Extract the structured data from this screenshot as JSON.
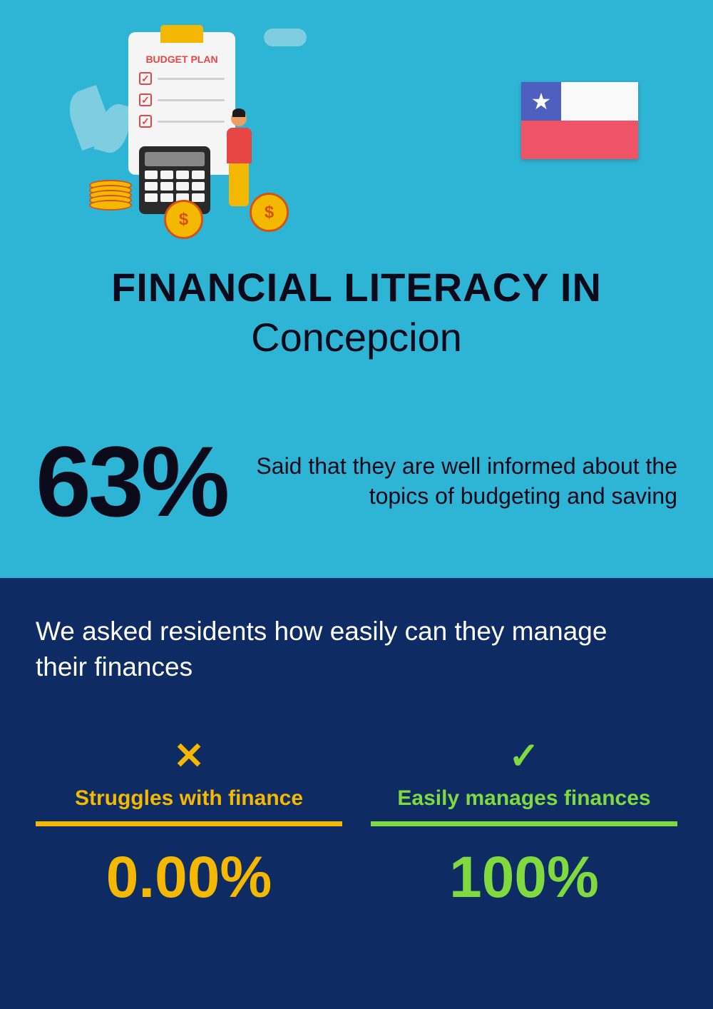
{
  "illustration": {
    "budget_plan_label": "BUDGET PLAN"
  },
  "flag": {
    "blue_color": "#4e5fbf",
    "white_color": "#f9f9f9",
    "red_color": "#f05365",
    "star": "★"
  },
  "title": {
    "main": "FINANCIAL LITERACY IN",
    "location": "Concepcion"
  },
  "main_stat": {
    "percentage": "63%",
    "description": "Said that they are well informed about the topics of budgeting and saving"
  },
  "question": "We asked residents how easily can they manage their finances",
  "comparison": {
    "struggles": {
      "label": "Struggles with finance",
      "value": "0.00%",
      "color": "#f5b800"
    },
    "easy": {
      "label": "Easily manages finances",
      "value": "100%",
      "color": "#7fd93f"
    }
  },
  "colors": {
    "top_bg": "#2eb4d4",
    "bottom_bg": "#0e2b63",
    "yellow": "#f5b800",
    "green": "#7fd93f",
    "dark": "#0a0a1a"
  }
}
